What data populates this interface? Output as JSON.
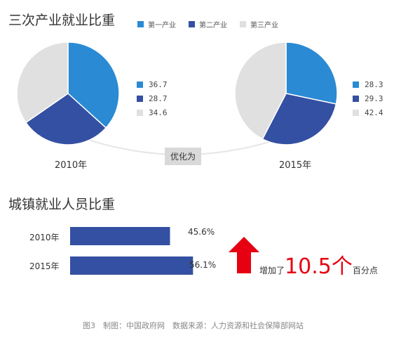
{
  "header": {
    "title": "三次产业就业比重"
  },
  "legend": [
    {
      "label": "第一产业",
      "color": "#2a8ad4"
    },
    {
      "label": "第二产业",
      "color": "#3450a2"
    },
    {
      "label": "第三产业",
      "color": "#e0e0e0"
    }
  ],
  "connector_label": "优化为",
  "chart_data": [
    {
      "type": "pie",
      "year_label": "2010年",
      "categories": [
        "第一产业",
        "第二产业",
        "第三产业"
      ],
      "values": [
        36.7,
        28.7,
        34.6
      ],
      "value_labels": [
        "36.7",
        "28.7",
        "34.6"
      ],
      "colors": [
        "#2a8ad4",
        "#3450a2",
        "#e0e0e0"
      ]
    },
    {
      "type": "pie",
      "year_label": "2015年",
      "categories": [
        "第一产业",
        "第二产业",
        "第三产业"
      ],
      "values": [
        28.3,
        29.3,
        42.4
      ],
      "value_labels": [
        "28.3",
        "29.3",
        "42.4"
      ],
      "colors": [
        "#2a8ad4",
        "#3450a2",
        "#e0e0e0"
      ]
    },
    {
      "type": "bar",
      "title": "城镇就业人员比重",
      "categories": [
        "2010年",
        "2015年"
      ],
      "values": [
        45.6,
        56.1
      ],
      "value_labels": [
        "45.6%",
        "56.1%"
      ],
      "color": "#3450a2"
    }
  ],
  "increase": {
    "prefix": "增加了",
    "value": "10.5个",
    "suffix": "百分点",
    "arrow_color": "#e60012"
  },
  "footer": "图3　制图：中国政府网　数据来源：人力资源和社会保障部网站"
}
